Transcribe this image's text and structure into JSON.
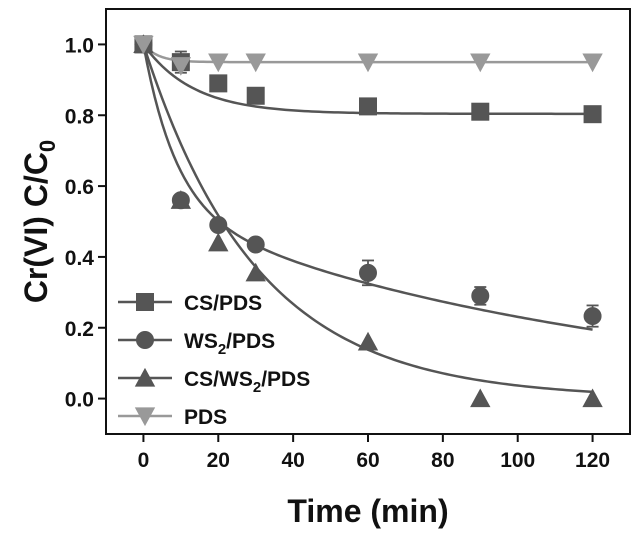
{
  "chart_data": {
    "type": "scatter",
    "xlabel": "Time (min)",
    "ylabel": {
      "main": "Cr(VI) C/C",
      "sub": "0"
    },
    "xlim": [
      -10,
      130
    ],
    "ylim": [
      -0.1,
      1.1
    ],
    "xticks": [
      0,
      20,
      40,
      60,
      80,
      100,
      120
    ],
    "yticks": [
      0.0,
      0.2,
      0.4,
      0.6,
      0.8,
      1.0
    ],
    "ytick_labels": [
      "0.0",
      "0.2",
      "0.4",
      "0.6",
      "0.8",
      "1.0"
    ],
    "grid": false,
    "legend_position": "bottom-left",
    "series": [
      {
        "name": "CS/PDS",
        "legend": {
          "pre": "CS/PDS",
          "sub": "",
          "post": ""
        },
        "marker": "square",
        "color": "#555555",
        "x": [
          0,
          10,
          20,
          30,
          60,
          90,
          120
        ],
        "y": [
          1.0,
          0.95,
          0.89,
          0.855,
          0.825,
          0.81,
          0.803
        ],
        "err": [
          0,
          0.03,
          0.015,
          0.01,
          0.01,
          0.01,
          0.01
        ],
        "fit": {
          "type": "exp",
          "a": 0.196,
          "k": 0.075
        }
      },
      {
        "name": "WS2/PDS",
        "legend": {
          "pre": "WS",
          "sub": "2",
          "post": "/PDS"
        },
        "marker": "circle",
        "color": "#555555",
        "x": [
          0,
          10,
          20,
          30,
          60,
          90,
          120
        ],
        "y": [
          1.0,
          0.56,
          0.49,
          0.435,
          0.355,
          0.29,
          0.233
        ],
        "err": [
          0,
          0.015,
          0.015,
          0.015,
          0.035,
          0.025,
          0.03
        ],
        "fit": {
          "type": "biexp",
          "a1": 0.46,
          "k1": 0.115,
          "a2": 0.54,
          "k2": 0.0085
        }
      },
      {
        "name": "CS/WS2/PDS",
        "legend": {
          "pre": "CS/WS",
          "sub": "2",
          "post": "/PDS"
        },
        "marker": "triangle-up",
        "color": "#555555",
        "x": [
          0,
          10,
          20,
          30,
          60,
          90,
          120
        ],
        "y": [
          1.0,
          0.56,
          0.44,
          0.355,
          0.16,
          0.0,
          0.0
        ],
        "err": [
          0,
          0,
          0,
          0,
          0,
          0,
          0
        ],
        "fit": {
          "type": "exp",
          "a": 1.0,
          "k": 0.033
        }
      },
      {
        "name": "PDS",
        "legend": {
          "pre": "PDS",
          "sub": "",
          "post": ""
        },
        "marker": "triangle-down",
        "color": "#999999",
        "x": [
          0,
          10,
          20,
          30,
          60,
          90,
          120
        ],
        "y": [
          1.0,
          0.94,
          0.95,
          0.95,
          0.95,
          0.95,
          0.95
        ],
        "err": [
          0,
          0,
          0,
          0,
          0,
          0,
          0
        ],
        "fit": {
          "type": "exp",
          "a": 0.05,
          "k": 0.25
        }
      }
    ]
  }
}
